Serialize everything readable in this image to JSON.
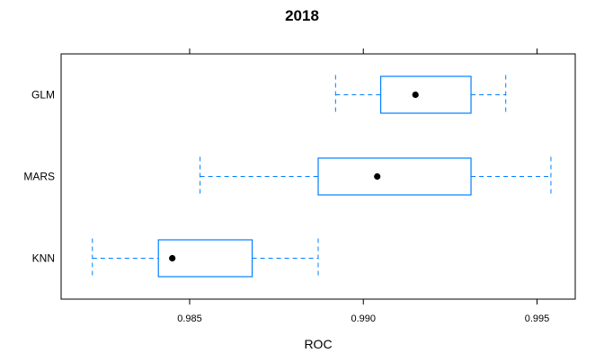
{
  "chart_data": {
    "type": "boxplot",
    "title": "2018",
    "xlabel": "ROC",
    "ylabel": "",
    "xlim": [
      0.9813,
      0.9961
    ],
    "x_ticks": [
      0.985,
      0.99,
      0.995
    ],
    "x_tick_labels": [
      "0.985",
      "0.990",
      "0.995"
    ],
    "grid": false,
    "categories": [
      "GLM",
      "MARS",
      "KNN"
    ],
    "boxes": [
      {
        "name": "GLM",
        "whisker_low": 0.9892,
        "q1": 0.9905,
        "median": 0.9915,
        "q3": 0.9931,
        "whisker_high": 0.9941
      },
      {
        "name": "MARS",
        "whisker_low": 0.9853,
        "q1": 0.9887,
        "median": 0.9904,
        "q3": 0.9931,
        "whisker_high": 0.9954
      },
      {
        "name": "KNN",
        "whisker_low": 0.9822,
        "q1": 0.9841,
        "median": 0.9845,
        "q3": 0.9868,
        "whisker_high": 0.9887
      }
    ],
    "colors": {
      "box": "#0080ff",
      "median_dot": "#000000",
      "frame": "#000000"
    }
  }
}
